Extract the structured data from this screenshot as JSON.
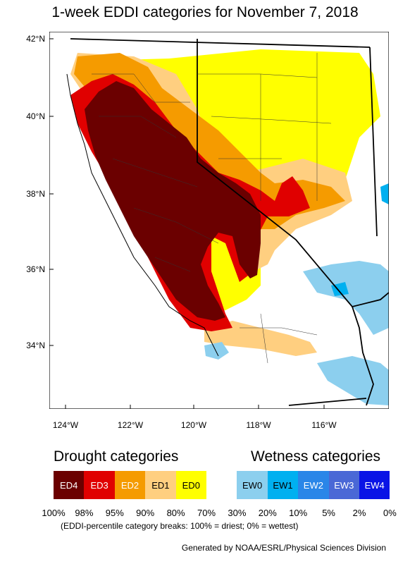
{
  "title": "1-week EDDI categories for November 7, 2018",
  "y_ticks": [
    "42°N",
    "40°N",
    "38°N",
    "36°N",
    "34°N"
  ],
  "x_ticks": [
    "124°W",
    "122°W",
    "120°W",
    "118°W",
    "116°W"
  ],
  "legend": {
    "drought_heading": "Drought categories",
    "wetness_heading": "Wetness categories",
    "categories": [
      {
        "label": "ED4",
        "color": "#6b0000",
        "text_color": "#ffffff"
      },
      {
        "label": "ED3",
        "color": "#e00000",
        "text_color": "#ffffff"
      },
      {
        "label": "ED2",
        "color": "#f59b00",
        "text_color": "#ffffff"
      },
      {
        "label": "ED1",
        "color": "#ffcf80",
        "text_color": "#000000"
      },
      {
        "label": "ED0",
        "color": "#ffff00",
        "text_color": "#000000"
      },
      {
        "label": "",
        "color": "#ffffff",
        "text_color": "#000000"
      },
      {
        "label": "EW0",
        "color": "#8ccfee",
        "text_color": "#000000"
      },
      {
        "label": "EW1",
        "color": "#00b0f0",
        "text_color": "#000000"
      },
      {
        "label": "EW2",
        "color": "#2a86e8",
        "text_color": "#ffffff"
      },
      {
        "label": "EW3",
        "color": "#4a68d6",
        "text_color": "#ffffff"
      },
      {
        "label": "EW4",
        "color": "#0a14e6",
        "text_color": "#ffffff"
      }
    ],
    "breaks": [
      "100%",
      "98%",
      "95%",
      "90%",
      "80%",
      "70%",
      "30%",
      "20%",
      "10%",
      "5%",
      "2%",
      "0%"
    ],
    "note": "(EDDI-percentile category breaks: 100% = driest; 0% = wettest)"
  },
  "credit": "Generated by NOAA/ESRL/Physical Sciences Division"
}
